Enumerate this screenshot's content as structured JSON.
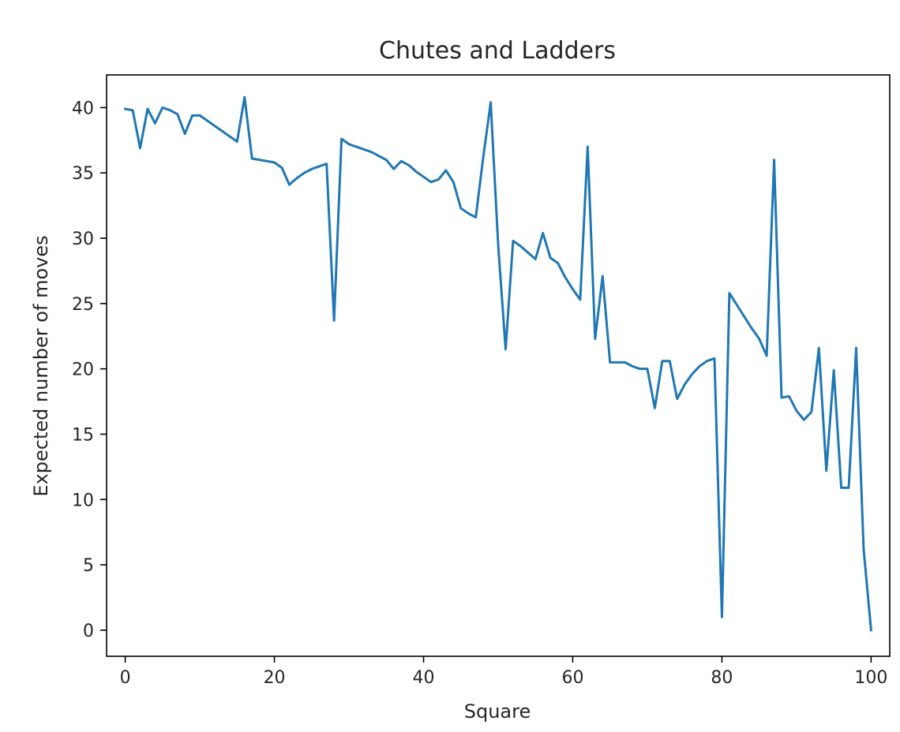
{
  "chart_data": {
    "type": "line",
    "title": "Chutes and Ladders",
    "xlabel": "Square",
    "ylabel": "Expected number of moves",
    "xlim": [
      -2.5,
      102.5
    ],
    "ylim": [
      -2.0,
      42.5
    ],
    "xticks": [
      0,
      20,
      40,
      60,
      80,
      100
    ],
    "yticks": [
      0,
      5,
      10,
      15,
      20,
      25,
      30,
      35,
      40
    ],
    "grid": false,
    "legend": "none",
    "series": [
      {
        "color": "#1f77b4",
        "x": [
          0,
          1,
          2,
          3,
          4,
          5,
          6,
          7,
          8,
          9,
          10,
          11,
          12,
          13,
          14,
          15,
          16,
          17,
          18,
          19,
          20,
          21,
          22,
          23,
          24,
          25,
          26,
          27,
          28,
          29,
          30,
          31,
          32,
          33,
          34,
          35,
          36,
          37,
          38,
          39,
          40,
          41,
          42,
          43,
          44,
          45,
          46,
          47,
          48,
          49,
          50,
          51,
          52,
          53,
          54,
          55,
          56,
          57,
          58,
          59,
          60,
          61,
          62,
          63,
          64,
          65,
          66,
          67,
          68,
          69,
          70,
          71,
          72,
          73,
          74,
          75,
          76,
          77,
          78,
          79,
          80,
          81,
          82,
          83,
          84,
          85,
          86,
          87,
          88,
          89,
          90,
          91,
          92,
          93,
          94,
          95,
          96,
          97,
          98,
          99,
          100
        ],
        "y": [
          39.9,
          39.8,
          36.9,
          39.9,
          38.8,
          40.0,
          39.8,
          39.5,
          38.0,
          39.4,
          39.4,
          39.0,
          38.6,
          38.2,
          37.8,
          37.4,
          40.8,
          36.1,
          36.0,
          35.9,
          35.8,
          35.4,
          34.1,
          34.6,
          35.0,
          35.3,
          35.5,
          35.7,
          23.7,
          37.6,
          37.2,
          37.0,
          36.8,
          36.6,
          36.3,
          36.0,
          35.3,
          35.9,
          35.6,
          35.1,
          34.7,
          34.3,
          34.5,
          35.2,
          34.3,
          32.3,
          31.9,
          31.6,
          36.2,
          40.4,
          29.5,
          21.5,
          29.8,
          29.4,
          28.9,
          28.4,
          30.4,
          28.5,
          28.1,
          27.0,
          26.1,
          25.3,
          37.0,
          22.3,
          27.1,
          20.5,
          20.5,
          20.5,
          20.2,
          20.0,
          20.0,
          17.0,
          20.6,
          20.6,
          17.7,
          18.8,
          19.6,
          20.2,
          20.6,
          20.8,
          1.0,
          25.8,
          24.9,
          24.0,
          23.1,
          22.3,
          21.0,
          36.0,
          17.8,
          17.9,
          16.8,
          16.1,
          16.7,
          21.6,
          12.2,
          19.9,
          10.9,
          10.9,
          21.6,
          6.2,
          0.0
        ]
      }
    ]
  }
}
